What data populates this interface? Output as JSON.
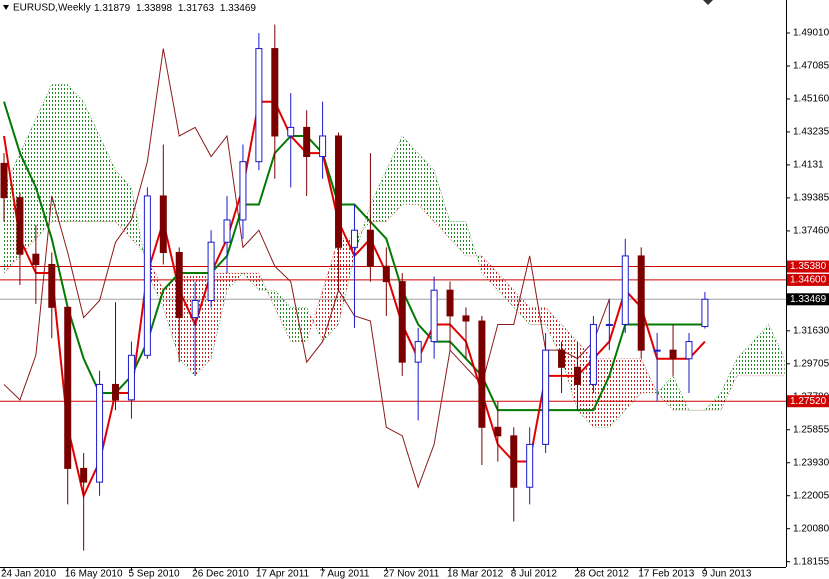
{
  "chart_data": {
    "type": "candlestick",
    "title": "EURUSD,Weekly",
    "categories": [
      "24 Jan 2010",
      null,
      null,
      null,
      "16 May 2010",
      null,
      null,
      null,
      "5 Sep 2010",
      null,
      null,
      null,
      "26 Dec 2010",
      null,
      null,
      null,
      "17 Apr 2011",
      null,
      null,
      null,
      "7 Aug 2011",
      null,
      null,
      null,
      "27 Nov 2011",
      null,
      null,
      null,
      "18 Mar 2012",
      null,
      null,
      null,
      "8 Jul 2012",
      null,
      null,
      null,
      "28 Oct 2012",
      null,
      null,
      null,
      "17 Feb 2013",
      null,
      null,
      null,
      "9 Jun 2013",
      null,
      null,
      null,
      null,
      null
    ],
    "open": [
      1.414,
      1.394,
      1.361,
      1.355,
      1.33,
      1.236,
      1.228,
      1.285,
      1.276,
      1.302,
      1.395,
      1.362,
      1.324,
      1.334,
      1.368,
      1.381,
      1.415,
      1.481,
      1.43,
      1.435,
      1.418,
      1.43,
      1.365,
      1.375,
      1.354,
      1.345,
      1.298,
      1.31,
      1.34,
      1.325,
      1.322,
      1.26,
      1.255,
      1.225,
      1.25,
      1.305,
      1.295,
      1.285,
      1.32,
      1.32,
      1.36,
      1.305,
      1.305,
      1.3,
      1.31879,
      null,
      null,
      null,
      null,
      null
    ],
    "high": [
      1.42,
      1.397,
      1.378,
      1.362,
      1.33,
      1.245,
      1.293,
      1.333,
      1.31,
      1.4,
      1.425,
      1.365,
      1.345,
      1.375,
      1.395,
      1.425,
      1.49,
      1.495,
      1.455,
      1.445,
      1.45,
      1.432,
      1.39,
      1.42,
      1.365,
      1.35,
      1.318,
      1.348,
      1.345,
      1.33,
      1.325,
      1.275,
      1.26,
      1.26,
      1.315,
      1.31,
      1.31,
      1.325,
      1.335,
      1.37,
      1.365,
      1.315,
      1.32,
      1.315,
      1.33898,
      null,
      null,
      null,
      null,
      null
    ],
    "low": [
      1.38,
      1.343,
      1.332,
      1.312,
      1.215,
      1.188,
      1.22,
      1.27,
      1.265,
      1.3,
      1.355,
      1.298,
      1.29,
      1.33,
      1.35,
      1.37,
      1.41,
      1.405,
      1.4,
      1.395,
      1.405,
      1.34,
      1.318,
      1.345,
      1.325,
      1.29,
      1.264,
      1.3,
      1.305,
      1.3,
      1.238,
      1.24,
      1.205,
      1.215,
      1.245,
      1.28,
      1.27,
      1.28,
      1.305,
      1.315,
      1.3,
      1.275,
      1.29,
      1.28,
      1.31763,
      null,
      null,
      null,
      null,
      null
    ],
    "close": [
      1.394,
      1.361,
      1.355,
      1.33,
      1.236,
      1.228,
      1.285,
      1.276,
      1.302,
      1.395,
      1.362,
      1.324,
      1.334,
      1.368,
      1.381,
      1.415,
      1.481,
      1.43,
      1.435,
      1.418,
      1.43,
      1.365,
      1.375,
      1.354,
      1.345,
      1.298,
      1.31,
      1.34,
      1.325,
      1.322,
      1.26,
      1.255,
      1.225,
      1.25,
      1.305,
      1.295,
      1.285,
      1.32,
      1.32,
      1.36,
      1.305,
      1.305,
      1.3,
      1.31,
      1.33469,
      null,
      null,
      null,
      null,
      null
    ],
    "up_color": "#1a1acc",
    "down_color": "#7a0000",
    "lines": [
      {
        "color": "#e00000",
        "width": 2,
        "values": [
          1.43,
          1.37,
          1.35,
          1.35,
          1.26,
          1.22,
          1.24,
          1.28,
          1.28,
          1.35,
          1.38,
          1.34,
          1.32,
          1.35,
          1.37,
          1.4,
          1.45,
          1.45,
          1.43,
          1.42,
          1.42,
          1.38,
          1.36,
          1.37,
          1.35,
          1.32,
          1.3,
          1.32,
          1.32,
          1.31,
          1.28,
          1.25,
          1.24,
          1.24,
          1.29,
          1.29,
          1.29,
          1.3,
          1.31,
          1.34,
          1.33,
          1.3,
          1.3,
          1.3,
          1.31,
          null,
          null,
          null,
          null,
          null
        ]
      },
      {
        "color": "#007a00",
        "width": 2,
        "values": [
          1.45,
          1.42,
          1.4,
          1.37,
          1.33,
          1.3,
          1.28,
          1.28,
          1.29,
          1.31,
          1.34,
          1.35,
          1.35,
          1.35,
          1.36,
          1.39,
          1.39,
          1.42,
          1.43,
          1.43,
          1.42,
          1.39,
          1.39,
          1.38,
          1.37,
          1.34,
          1.32,
          1.31,
          1.31,
          1.3,
          1.29,
          1.27,
          1.27,
          1.27,
          1.27,
          1.27,
          1.27,
          1.27,
          1.29,
          1.32,
          1.32,
          1.32,
          1.32,
          1.32,
          1.32,
          null,
          null,
          null,
          null,
          null
        ]
      },
      {
        "color": "#8b1a1a",
        "width": 1,
        "values": [
          1.285,
          1.276,
          1.302,
          1.395,
          1.362,
          1.324,
          1.334,
          1.368,
          1.381,
          1.415,
          1.481,
          1.43,
          1.435,
          1.418,
          1.43,
          1.365,
          1.375,
          1.354,
          1.345,
          1.298,
          1.31,
          1.34,
          1.325,
          1.322,
          1.26,
          1.255,
          1.225,
          1.25,
          1.305,
          1.295,
          1.285,
          1.32,
          1.32,
          1.36,
          1.305,
          1.305,
          1.3,
          1.31,
          1.33469,
          null,
          null,
          null,
          null,
          null,
          null,
          null,
          null,
          null,
          null,
          null
        ]
      }
    ],
    "cloud": {
      "bull_color": "#1f8a1f",
      "bear_color": "#c42020",
      "span_a": [
        1.4,
        1.42,
        1.44,
        1.46,
        1.46,
        1.45,
        1.43,
        1.41,
        1.4,
        1.35,
        1.33,
        1.3,
        1.29,
        1.3,
        1.34,
        1.35,
        1.34,
        1.34,
        1.33,
        1.33,
        1.31,
        1.32,
        1.36,
        1.39,
        1.41,
        1.43,
        1.42,
        1.41,
        1.38,
        1.38,
        1.35,
        1.34,
        1.33,
        1.32,
        1.32,
        1.3,
        1.27,
        1.26,
        1.26,
        1.27,
        1.28,
        1.28,
        1.29,
        1.27,
        1.27,
        1.28,
        1.3,
        1.31,
        1.32,
        1.3
      ],
      "span_b": [
        1.35,
        1.36,
        1.37,
        1.38,
        1.38,
        1.38,
        1.38,
        1.38,
        1.37,
        1.36,
        1.34,
        1.35,
        1.35,
        1.35,
        1.35,
        1.35,
        1.35,
        1.33,
        1.31,
        1.31,
        1.34,
        1.37,
        1.37,
        1.38,
        1.38,
        1.39,
        1.39,
        1.38,
        1.37,
        1.36,
        1.36,
        1.35,
        1.34,
        1.33,
        1.33,
        1.32,
        1.31,
        1.3,
        1.3,
        1.3,
        1.3,
        1.28,
        1.27,
        1.27,
        1.27,
        1.27,
        1.29,
        1.29,
        1.29,
        1.29
      ]
    },
    "hlines": [
      {
        "value": 1.3538,
        "label": "1.35380",
        "color": "#d00000"
      },
      {
        "value": 1.346,
        "label": "1.34600",
        "color": "#d00000"
      },
      {
        "value": 1.2752,
        "label": "1.27520",
        "color": "#d00000"
      }
    ],
    "current_price_color": "#a0a0a0",
    "ylim": [
      1.17845,
      1.50935
    ],
    "yticks": [
      {
        "value": 1.4901,
        "label": "1.49010"
      },
      1.47085,
      {
        "value": 1.4516,
        "label": "1.45160"
      },
      1.43235,
      1.4131,
      1.39385,
      {
        "value": 1.3746,
        "label": "1.37460"
      },
      {
        "value": 1.3163,
        "label": "1.31630"
      },
      1.29705,
      {
        "value": 1.2778,
        "label": "1.27780"
      },
      1.25855,
      {
        "value": 1.2393,
        "label": "1.23930"
      },
      1.22005,
      {
        "value": 1.2008,
        "label": "1.20080"
      },
      1.18155
    ]
  }
}
